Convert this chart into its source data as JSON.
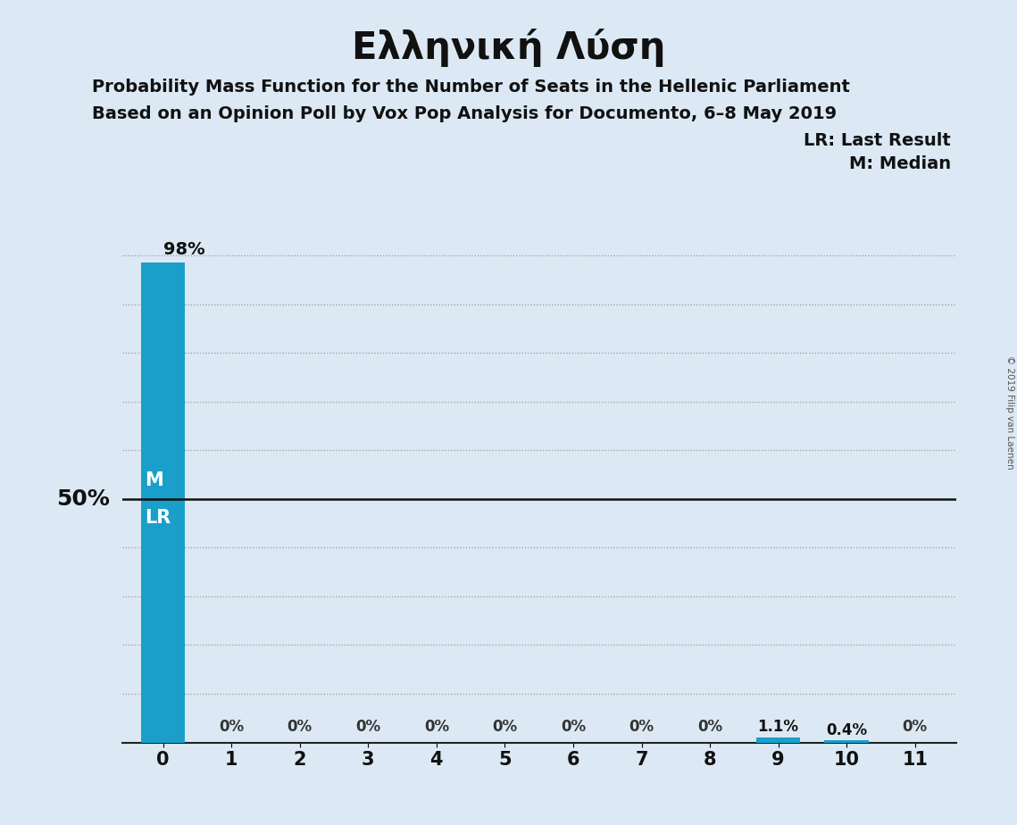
{
  "title": "Ελληνική Λύση",
  "subtitle1": "Probability Mass Function for the Number of Seats in the Hellenic Parliament",
  "subtitle2": "Based on an Opinion Poll by Vox Pop Analysis for Documento, 6–8 May 2019",
  "legend_lr": "LR: Last Result",
  "legend_m": "M: Median",
  "copyright": "© 2019 Filip van Laenen",
  "x_labels": [
    "0",
    "1",
    "2",
    "3",
    "4",
    "5",
    "6",
    "7",
    "8",
    "9",
    "10",
    "11"
  ],
  "values": [
    98.5,
    0.0,
    0.0,
    0.0,
    0.0,
    0.0,
    0.0,
    0.0,
    0.0,
    1.1,
    0.4,
    0.0
  ],
  "bar_labels": [
    "98%",
    "0%",
    "0%",
    "0%",
    "0%",
    "0%",
    "0%",
    "0%",
    "0%",
    "1.1%",
    "0.4%",
    "0%"
  ],
  "bar_color": "#1a9fca",
  "background_color": "#dce9f5",
  "ylim": [
    0,
    105
  ],
  "fifty_pct_line": 50,
  "median_label": "M",
  "lr_label": "LR",
  "ylabel_50": "50%",
  "dotted_grid_y": [
    10,
    20,
    30,
    40,
    60,
    70,
    80,
    90,
    100
  ]
}
